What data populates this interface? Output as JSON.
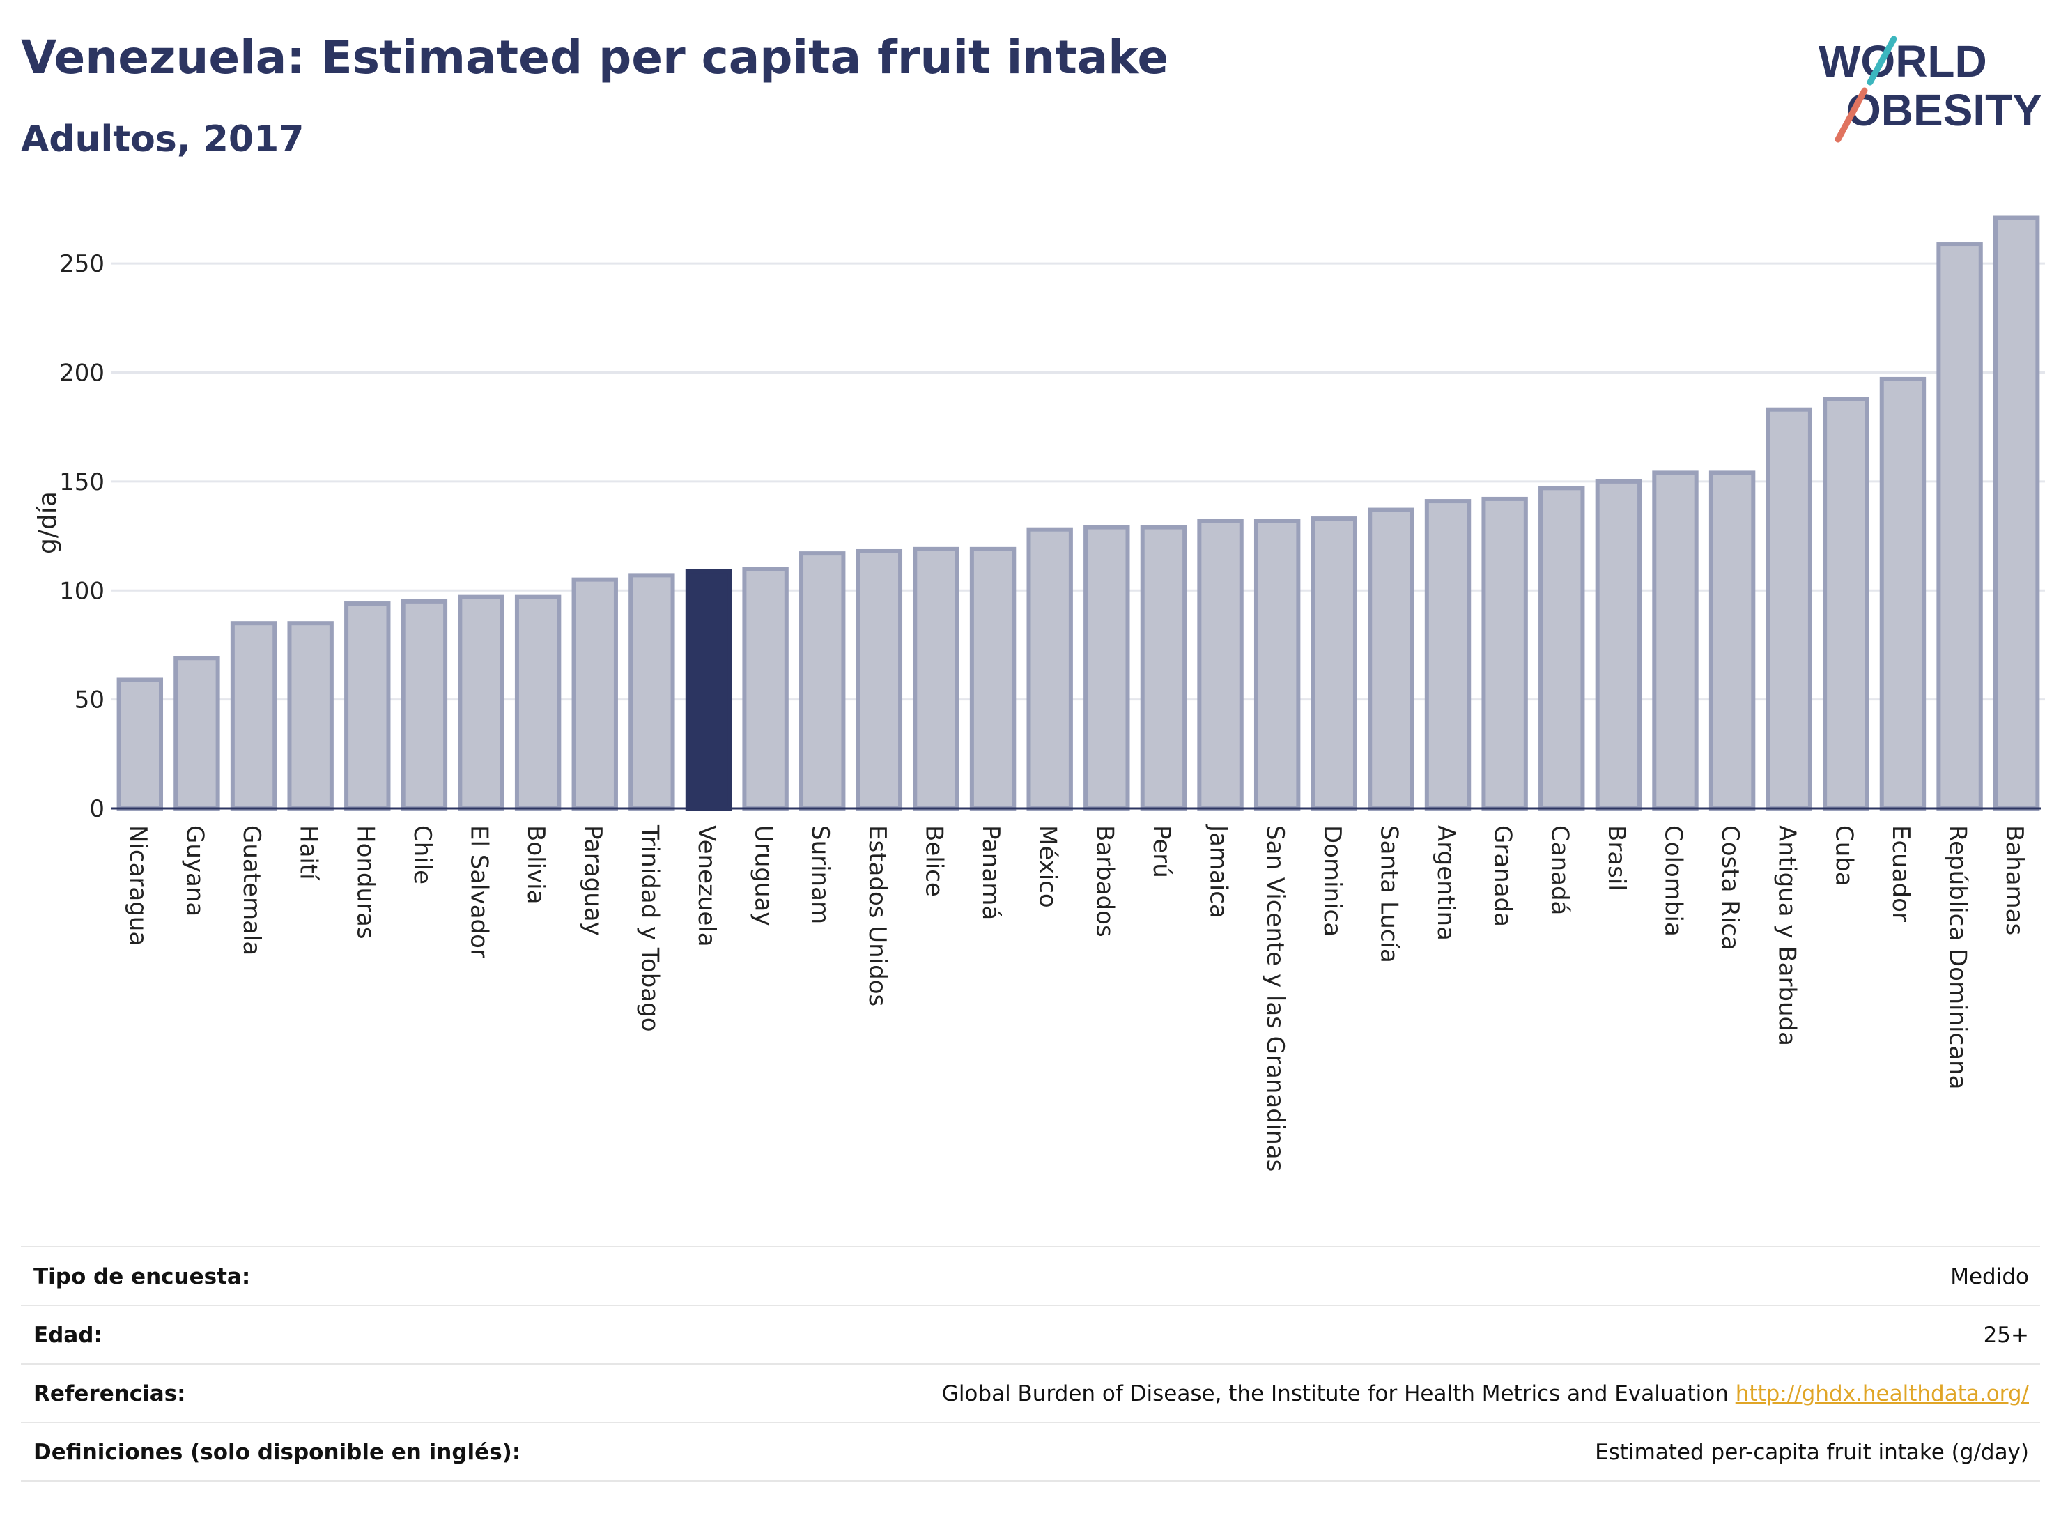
{
  "header": {
    "title": "Venezuela: Estimated per capita fruit intake",
    "subtitle": "Adultos, 2017"
  },
  "logo": {
    "line1": "WORLD",
    "line2": "OBESITY"
  },
  "colors": {
    "highlight": "#2c3561",
    "bar": "#bfc2cf",
    "bar_stroke": "#9aa0ba",
    "text": "#2c3561",
    "link": "#e0a526"
  },
  "chart_data": {
    "type": "bar",
    "ylabel": "g/día",
    "ylim": [
      0,
      275
    ],
    "yticks": [
      0,
      50,
      100,
      150,
      200,
      250
    ],
    "grid": true,
    "highlight": "Venezuela",
    "categories": [
      "Nicaragua",
      "Guyana",
      "Guatemala",
      "Haití",
      "Honduras",
      "Chile",
      "El Salvador",
      "Bolivia",
      "Paraguay",
      "Trinidad y Tobago",
      "Venezuela",
      "Uruguay",
      "Surinam",
      "Estados Unidos",
      "Belice",
      "Panamá",
      "México",
      "Barbados",
      "Perú",
      "Jamaica",
      "San Vicente y las Granadinas",
      "Dominica",
      "Santa Lucía",
      "Argentina",
      "Granada",
      "Canadá",
      "Brasil",
      "Colombia",
      "Costa Rica",
      "Antigua y Barbuda",
      "Cuba",
      "Ecuador",
      "República Dominicana",
      "Bahamas"
    ],
    "values": [
      59,
      69,
      85,
      85,
      94,
      95,
      97,
      97,
      105,
      107,
      109,
      110,
      117,
      118,
      119,
      119,
      128,
      129,
      129,
      132,
      132,
      133,
      137,
      141,
      142,
      147,
      150,
      154,
      154,
      183,
      188,
      197,
      259,
      271
    ]
  },
  "info_table": [
    {
      "label": "Tipo de encuesta:",
      "value": "Medido"
    },
    {
      "label": "Edad:",
      "value": "25+"
    },
    {
      "label": "Referencias:",
      "value": "Global Burden of Disease, the Institute for Health Metrics and Evaluation",
      "link": "http://ghdx.healthdata.org/"
    },
    {
      "label": "Definiciones (solo disponible en inglés):",
      "value": "Estimated per-capita fruit intake (g/day)"
    }
  ]
}
